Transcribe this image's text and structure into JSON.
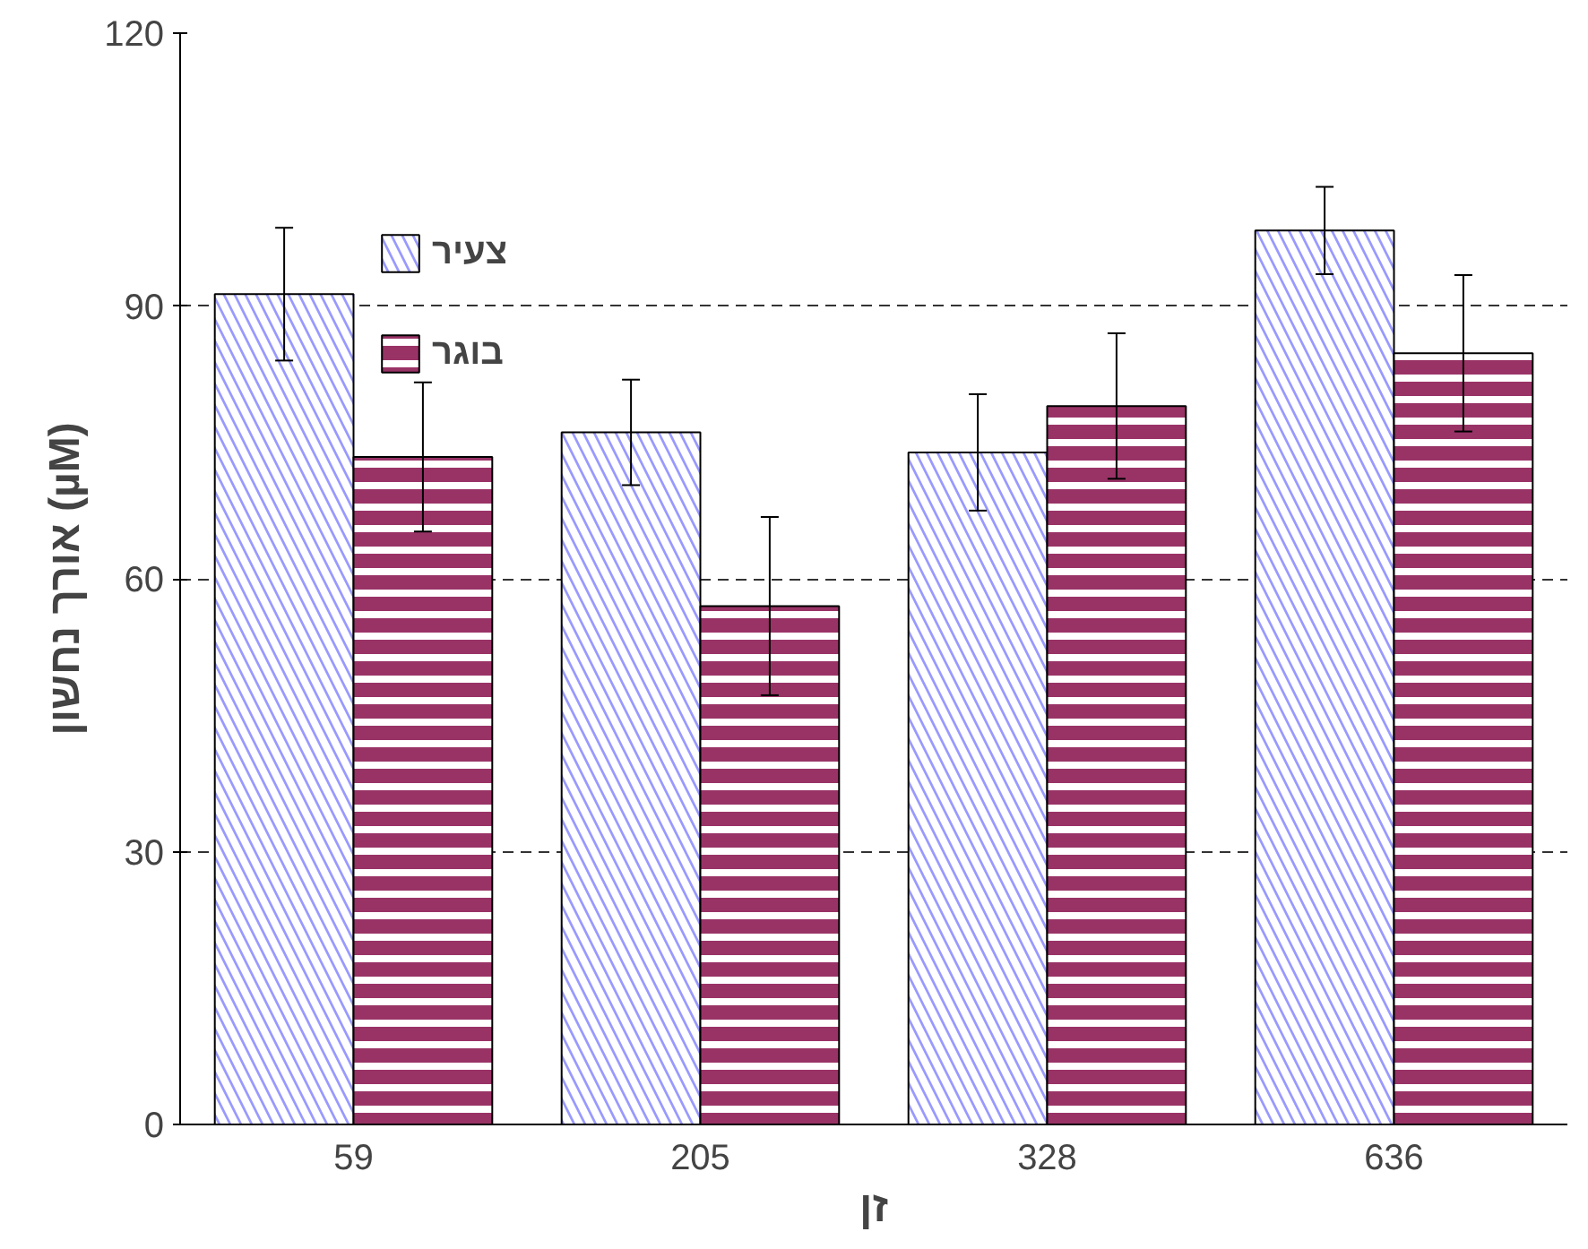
{
  "chart_data": {
    "type": "bar",
    "xlabel": "זן",
    "ylabel": "אורך נחשון (µM)",
    "categories": [
      "59",
      "205",
      "328",
      "636"
    ],
    "series": [
      {
        "name": "צעיר",
        "color": "#9999ff",
        "values": [
          91.3,
          76.1,
          73.9,
          98.3
        ],
        "errors": [
          7.3,
          5.8,
          6.4,
          4.8
        ]
      },
      {
        "name": "בוגר",
        "color": "#993366",
        "values": [
          73.4,
          57.0,
          79.0,
          84.8
        ],
        "errors": [
          8.2,
          9.8,
          8.0,
          8.6
        ]
      }
    ],
    "ylim": [
      0,
      120
    ],
    "yticks": [
      0,
      30,
      60,
      90,
      120
    ],
    "grid": "y",
    "legend": "top left"
  }
}
